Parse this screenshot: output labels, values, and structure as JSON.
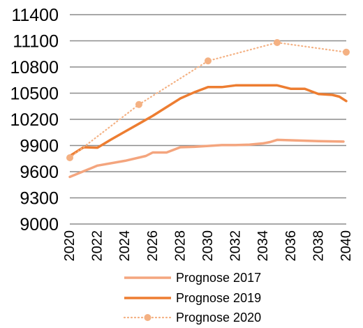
{
  "chart_data": {
    "type": "line",
    "title": "",
    "xlabel": "",
    "ylabel": "",
    "xlim": [
      2020,
      2040
    ],
    "ylim": [
      9000,
      11400
    ],
    "x_ticks": [
      "2020",
      "2022",
      "2024",
      "2026",
      "2028",
      "2030",
      "2032",
      "2034",
      "2036",
      "2038",
      "2040"
    ],
    "y_ticks": [
      "11400",
      "11100",
      "10800",
      "10500",
      "10200",
      "9900",
      "9600",
      "9300",
      "9000"
    ],
    "grid": true,
    "legend_position": "bottom",
    "series": [
      {
        "name": "Prognose 2017",
        "color": "#f4a57e",
        "style": "solid",
        "markers": false,
        "points": [
          [
            2020,
            9540
          ],
          [
            2022,
            9670
          ],
          [
            2024,
            9725
          ],
          [
            2025.5,
            9780
          ],
          [
            2026,
            9820
          ],
          [
            2027,
            9820
          ],
          [
            2028,
            9880
          ],
          [
            2029,
            9885
          ],
          [
            2030,
            9895
          ],
          [
            2031,
            9905
          ],
          [
            2032,
            9905
          ],
          [
            2033,
            9910
          ],
          [
            2034,
            9925
          ],
          [
            2034.5,
            9940
          ],
          [
            2035,
            9965
          ],
          [
            2036,
            9960
          ],
          [
            2038,
            9950
          ],
          [
            2039.8,
            9945
          ]
        ]
      },
      {
        "name": "Prognose 2019",
        "color": "#ed7d31",
        "style": "solid",
        "markers": false,
        "points": [
          [
            2020,
            9780
          ],
          [
            2021,
            9880
          ],
          [
            2022,
            9875
          ],
          [
            2023,
            9970
          ],
          [
            2024,
            10060
          ],
          [
            2025,
            10150
          ],
          [
            2026,
            10240
          ],
          [
            2027,
            10340
          ],
          [
            2028,
            10440
          ],
          [
            2029,
            10510
          ],
          [
            2030,
            10570
          ],
          [
            2031,
            10570
          ],
          [
            2032,
            10590
          ],
          [
            2033,
            10590
          ],
          [
            2034,
            10590
          ],
          [
            2035,
            10590
          ],
          [
            2036,
            10550
          ],
          [
            2037,
            10550
          ],
          [
            2038,
            10490
          ],
          [
            2039,
            10480
          ],
          [
            2039.5,
            10460
          ],
          [
            2040,
            10410
          ]
        ]
      },
      {
        "name": "Prognose 2020",
        "color": "#f4b183",
        "style": "dotted",
        "markers": true,
        "points": [
          [
            2020,
            9760
          ],
          [
            2025,
            10370
          ],
          [
            2030,
            10870
          ],
          [
            2035,
            11080
          ],
          [
            2040,
            10970
          ]
        ]
      }
    ]
  }
}
